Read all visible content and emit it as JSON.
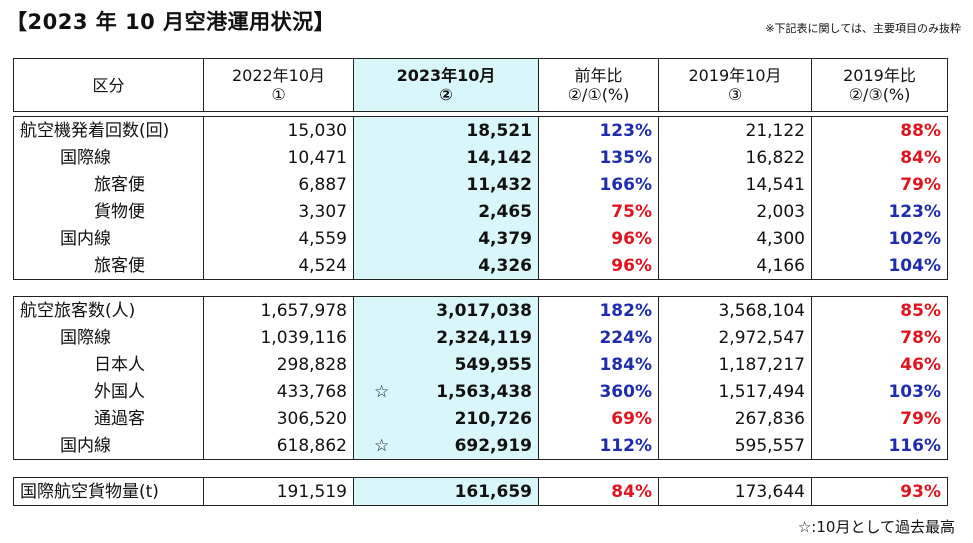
{
  "title": "【2023 年 10 月空港運用状況】",
  "note_top": "※下記表に関しては、主要項目のみ抜粋",
  "note_bottom": "☆:10月として過去最高",
  "headers": {
    "category": "区分",
    "c2022_l1": "2022年10月",
    "c2022_l2": "①",
    "c2023_l1": "2023年10月",
    "c2023_l2": "②",
    "yoy_l1": "前年比",
    "yoy_l2": "②/①(%)",
    "c2019_l1": "2019年10月",
    "c2019_l2": "③",
    "r2019_l1": "2019年比",
    "r2019_l2": "②/③(%)"
  },
  "group1": [
    {
      "label": "航空機発着回数(回)",
      "v2022": "15,030",
      "v2023": "18,521",
      "yoy": "123%",
      "v2019": "21,122",
      "r2019": "88%"
    },
    {
      "label": "国際線",
      "v2022": "10,471",
      "v2023": "14,142",
      "yoy": "135%",
      "v2019": "16,822",
      "r2019": "84%"
    },
    {
      "label": "旅客便",
      "v2022": "6,887",
      "v2023": "11,432",
      "yoy": "166%",
      "v2019": "14,541",
      "r2019": "79%"
    },
    {
      "label": "貨物便",
      "v2022": "3,307",
      "v2023": "2,465",
      "yoy": "75%",
      "v2019": "2,003",
      "r2019": "123%"
    },
    {
      "label": "国内線",
      "v2022": "4,559",
      "v2023": "4,379",
      "yoy": "96%",
      "v2019": "4,300",
      "r2019": "102%"
    },
    {
      "label": "旅客便",
      "v2022": "4,524",
      "v2023": "4,326",
      "yoy": "96%",
      "v2019": "4,166",
      "r2019": "104%"
    }
  ],
  "group2": [
    {
      "label": "航空旅客数(人)",
      "v2022": "1,657,978",
      "v2023": "3,017,038",
      "yoy": "182%",
      "v2019": "3,568,104",
      "r2019": "85%"
    },
    {
      "label": "国際線",
      "v2022": "1,039,116",
      "v2023": "2,324,119",
      "yoy": "224%",
      "v2019": "2,972,547",
      "r2019": "78%"
    },
    {
      "label": "日本人",
      "v2022": "298,828",
      "v2023": "549,955",
      "yoy": "184%",
      "v2019": "1,187,217",
      "r2019": "46%"
    },
    {
      "label": "外国人",
      "v2022": "433,768",
      "v2023": "1,563,438",
      "star": "☆",
      "yoy": "360%",
      "v2019": "1,517,494",
      "r2019": "103%"
    },
    {
      "label": "通過客",
      "v2022": "306,520",
      "v2023": "210,726",
      "yoy": "69%",
      "v2019": "267,836",
      "r2019": "79%"
    },
    {
      "label": "国内線",
      "v2022": "618,862",
      "v2023": "692,919",
      "star": "☆",
      "yoy": "112%",
      "v2019": "595,557",
      "r2019": "116%"
    }
  ],
  "group3": [
    {
      "label": "国際航空貨物量(t)",
      "v2022": "191,519",
      "v2023": "161,659",
      "yoy": "84%",
      "v2019": "173,644",
      "r2019": "93%"
    }
  ],
  "colors": {
    "highlight": "#d9f7fb",
    "increase": "#1f2cae",
    "decrease": "#e0141e"
  }
}
